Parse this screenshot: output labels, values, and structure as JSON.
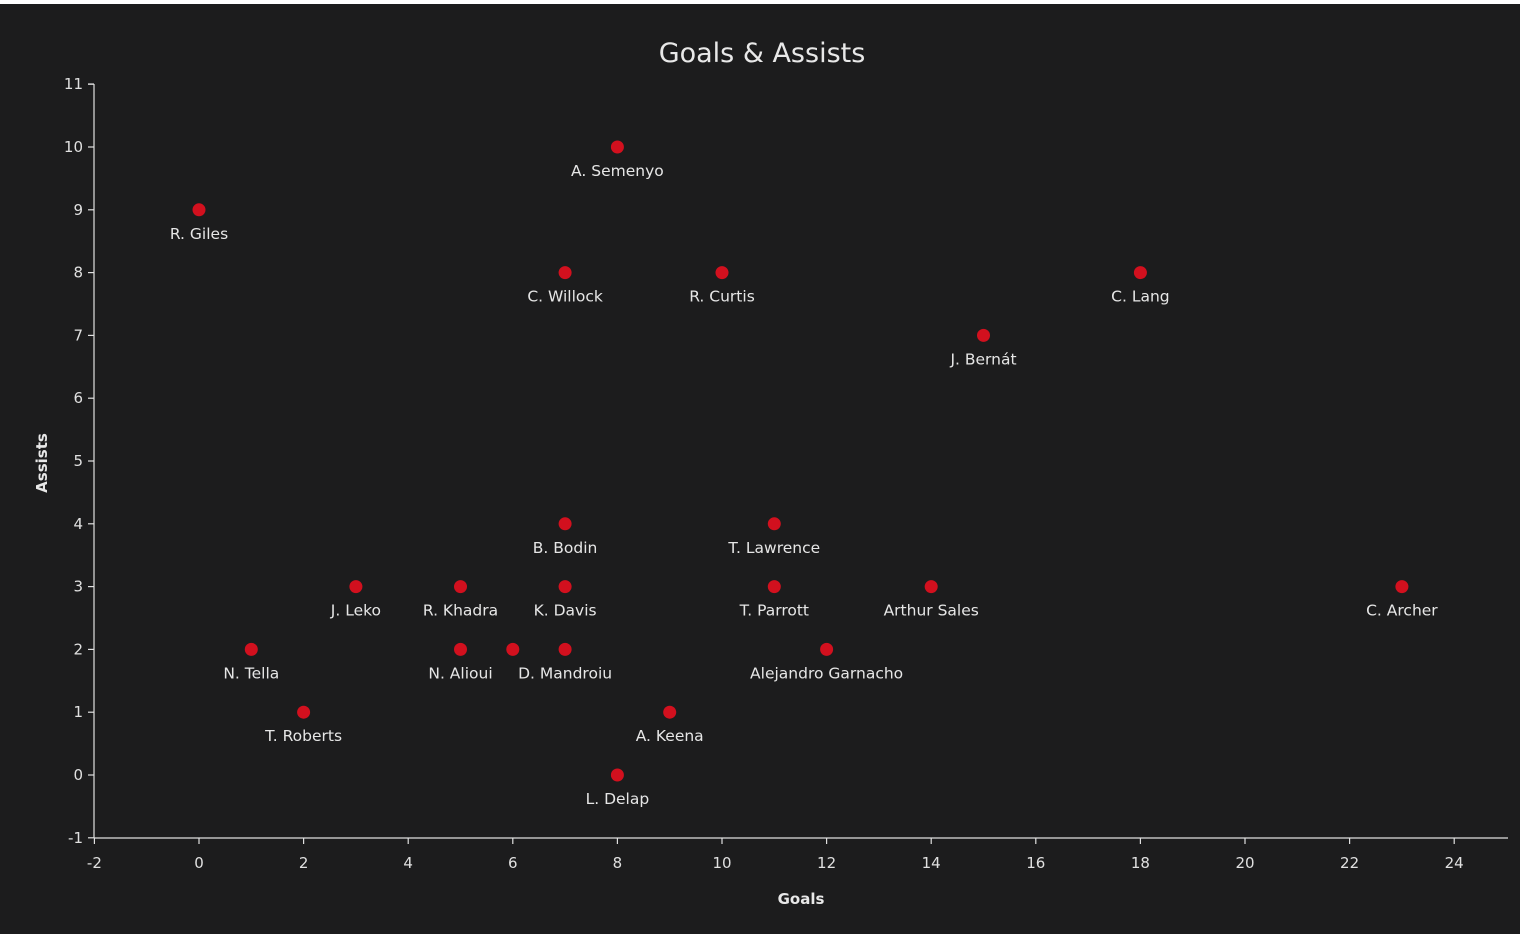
{
  "chart_data": {
    "type": "scatter",
    "title": "Goals & Assists",
    "xlabel": "Goals",
    "ylabel": "Assists",
    "xlim": [
      -2,
      25
    ],
    "ylim": [
      -1.2,
      11.2
    ],
    "x_ticks": [
      -2,
      0,
      2,
      4,
      6,
      8,
      10,
      12,
      14,
      16,
      18,
      20,
      22,
      24
    ],
    "y_ticks": [
      -1,
      0,
      1,
      2,
      3,
      4,
      5,
      6,
      7,
      8,
      9,
      10,
      11
    ],
    "marker_color": "#d2101e",
    "background": "#1c1c1d",
    "grid": false,
    "points": [
      {
        "label": "A. Semenyo",
        "x": 8,
        "y": 10
      },
      {
        "label": "R. Giles",
        "x": 0,
        "y": 9
      },
      {
        "label": "C. Willock",
        "x": 7,
        "y": 8
      },
      {
        "label": "R. Curtis",
        "x": 10,
        "y": 8
      },
      {
        "label": "C. Lang",
        "x": 18,
        "y": 8
      },
      {
        "label": "J. Bernát",
        "x": 15,
        "y": 7
      },
      {
        "label": "B. Bodin",
        "x": 7,
        "y": 4
      },
      {
        "label": "T. Lawrence",
        "x": 11,
        "y": 4
      },
      {
        "label": "J. Leko",
        "x": 3,
        "y": 3
      },
      {
        "label": "R. Khadra",
        "x": 5,
        "y": 3
      },
      {
        "label": "K. Davis",
        "x": 7,
        "y": 3
      },
      {
        "label": "T. Parrott",
        "x": 11,
        "y": 3
      },
      {
        "label": "Arthur Sales",
        "x": 14,
        "y": 3
      },
      {
        "label": "C. Archer",
        "x": 23,
        "y": 3
      },
      {
        "label": "N. Tella",
        "x": 1,
        "y": 2
      },
      {
        "label": "N. Alioui",
        "x": 5,
        "y": 2
      },
      {
        "label": "",
        "x": 6,
        "y": 2
      },
      {
        "label": "D. Mandroiu",
        "x": 7,
        "y": 2
      },
      {
        "label": "Alejandro Garnacho",
        "x": 12,
        "y": 2
      },
      {
        "label": "T. Roberts",
        "x": 2,
        "y": 1
      },
      {
        "label": "A. Keena",
        "x": 9,
        "y": 1
      },
      {
        "label": "L. Delap",
        "x": 8,
        "y": 0
      }
    ]
  }
}
